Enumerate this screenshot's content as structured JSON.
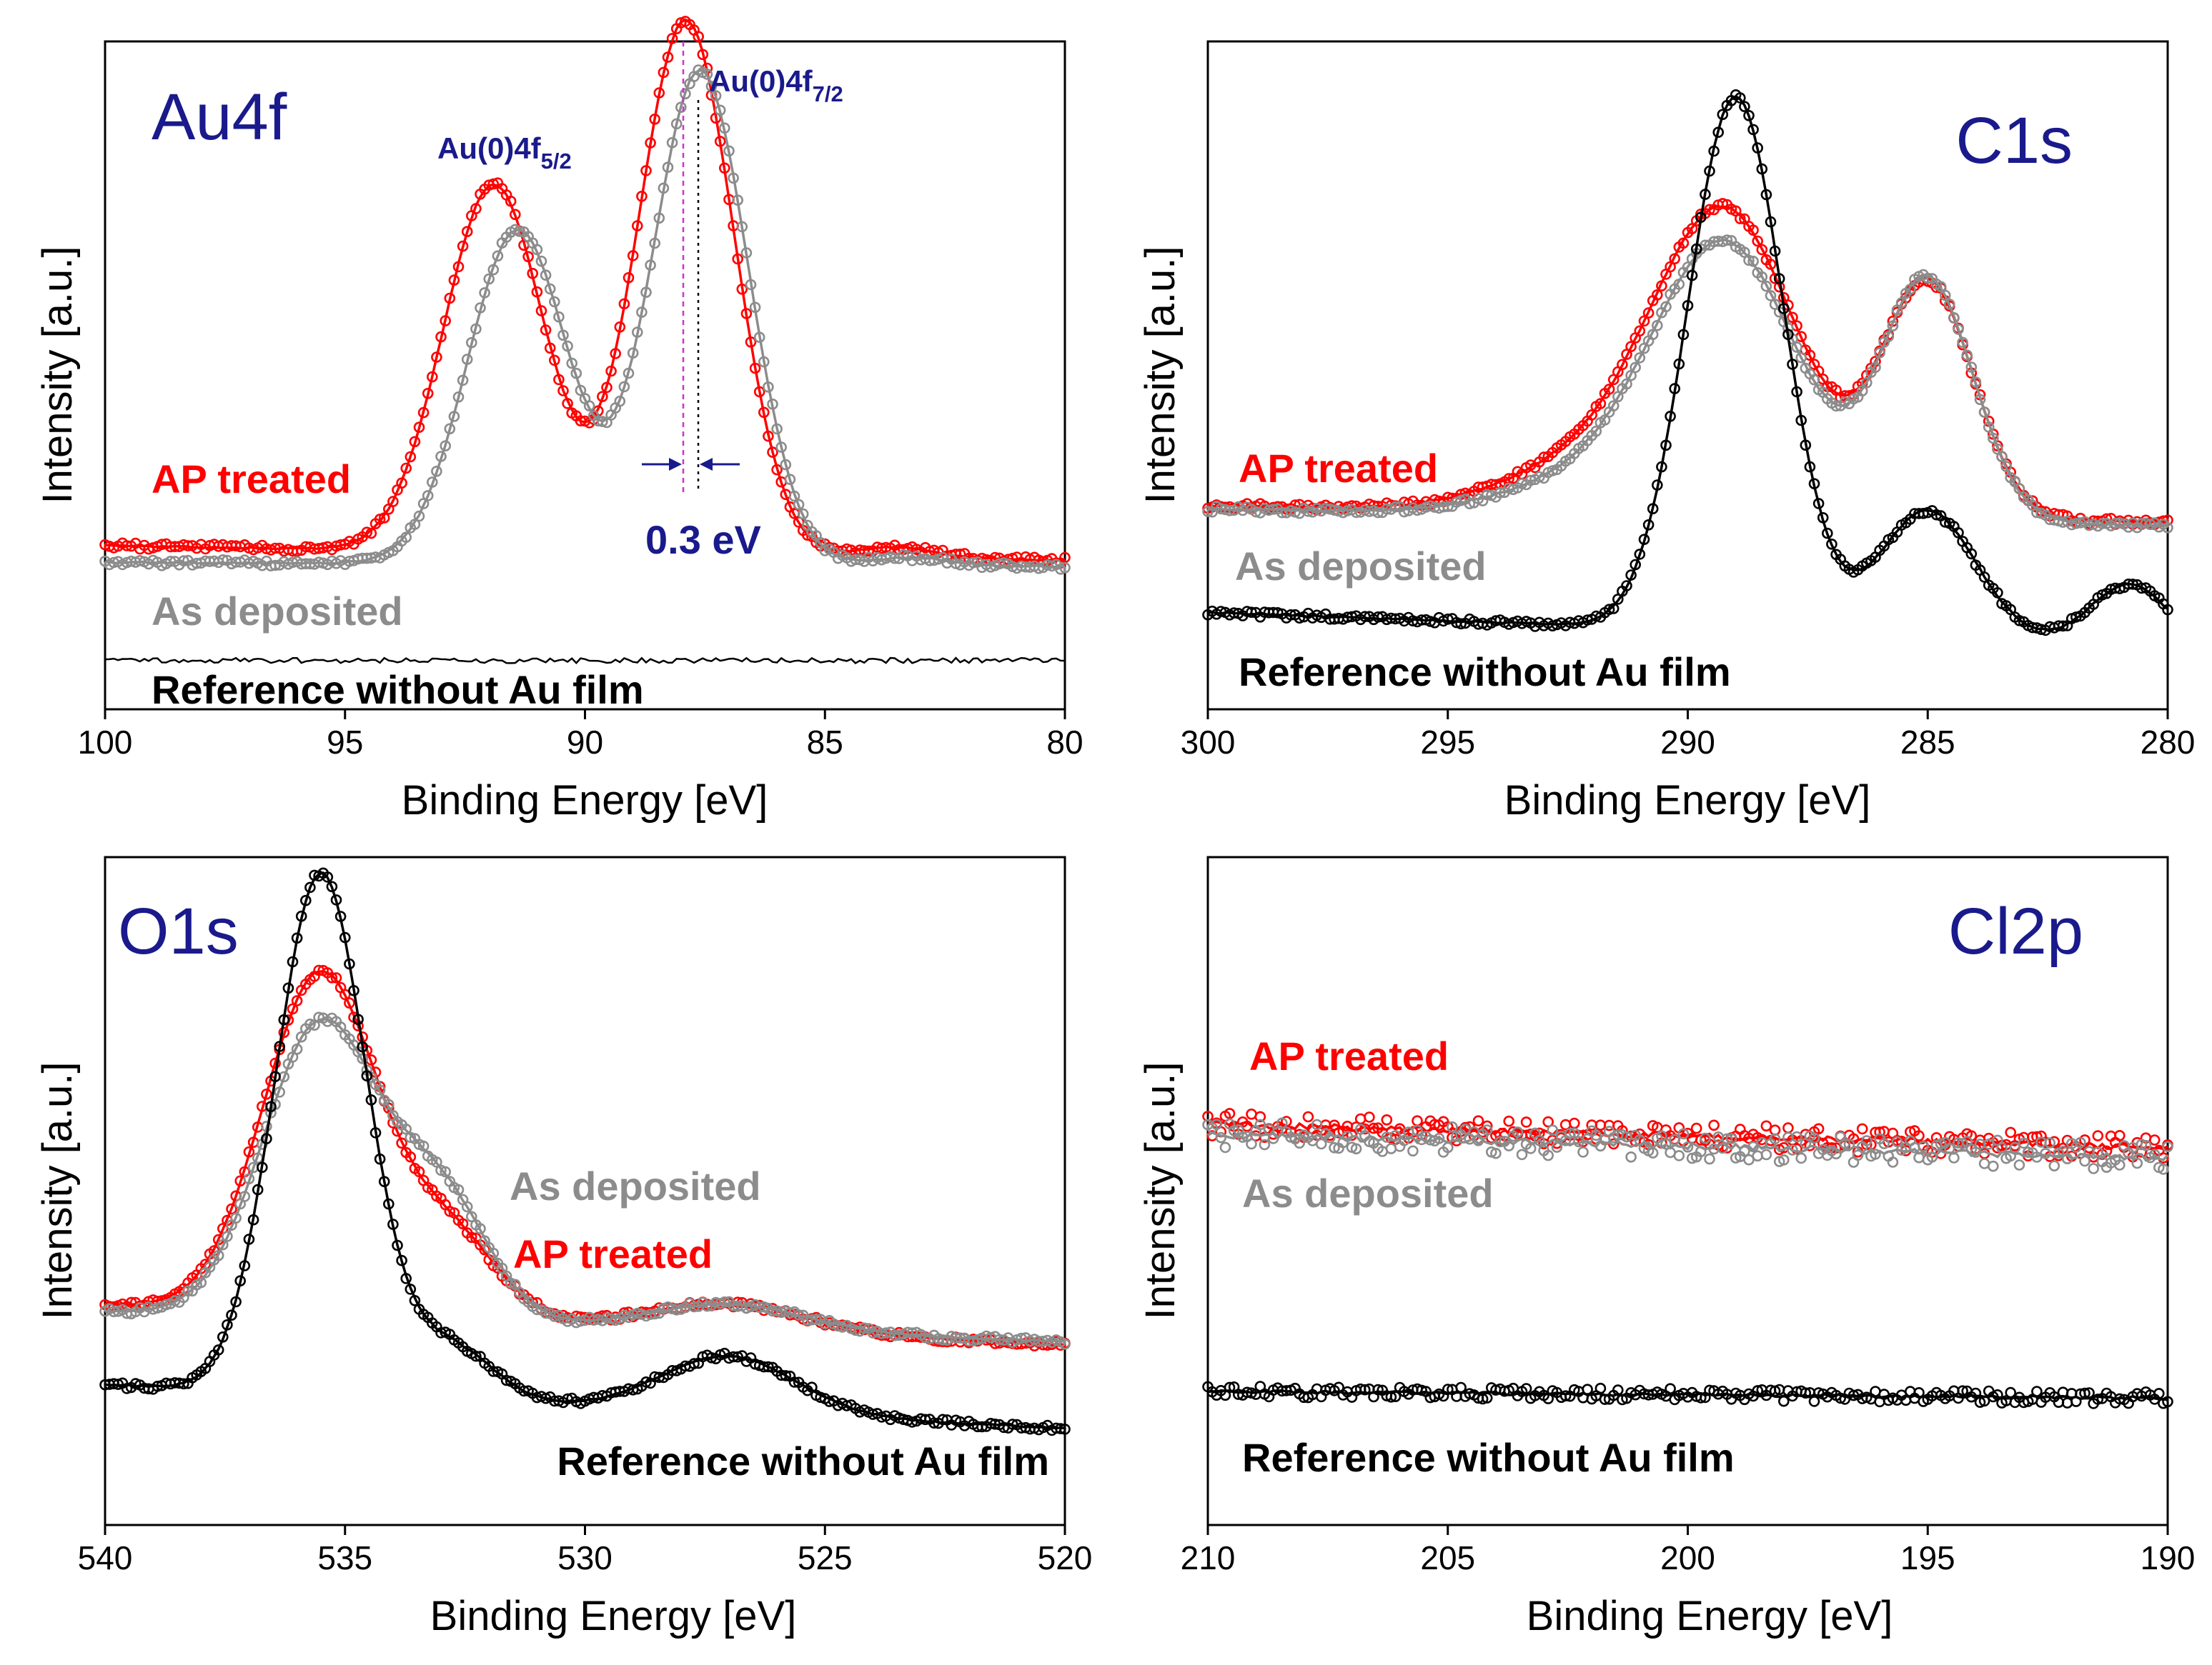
{
  "figure": {
    "axis_labels": {
      "x": "Binding Energy [eV]",
      "y": "Intensity [a.u.]"
    },
    "colors": {
      "ap": "#ff0000",
      "as": "#8c8c8c",
      "ref": "#000000",
      "title": "#1a1a8c",
      "shift_line": "#cc33cc"
    }
  },
  "chart_data": [
    {
      "type": "scatter",
      "title": "Au4f",
      "xlabel": "Binding Energy [eV]",
      "ylabel": "Intensity [a.u.]",
      "xlim": [
        100,
        80
      ],
      "ylim": [
        0,
        100
      ],
      "xticks": [
        100,
        95,
        90,
        85,
        80
      ],
      "legend": {
        "ap": "AP treated",
        "as": "As deposited",
        "ref": "Reference without Au film"
      },
      "annotations": {
        "peak_52_main": "Au(0)4f",
        "peak_52_sub": "5/2",
        "peak_72_main": "Au(0)4f",
        "peak_72_sub": "7/2",
        "shift": "0.3 eV",
        "ap_peak_energy": 87.9,
        "as_peak_energy": 87.6
      },
      "series": [
        {
          "key": "ap",
          "name": "AP treated",
          "baseline": 24.5,
          "slope": -2.2,
          "noise": 0.45,
          "markers": true,
          "peaks": [
            {
              "x": 91.9,
              "a": 55,
              "w": 1.05
            },
            {
              "x": 87.9,
              "a": 80,
              "w": 1.0
            },
            {
              "x": 83.5,
              "a": 1.6,
              "w": 0.8
            }
          ]
        },
        {
          "key": "as",
          "name": "As deposited",
          "baseline": 22.0,
          "slope": -0.6,
          "noise": 0.45,
          "markers": true,
          "peaks": [
            {
              "x": 91.4,
              "a": 50,
              "w": 1.05
            },
            {
              "x": 87.6,
              "a": 74,
              "w": 1.0
            },
            {
              "x": 83.2,
              "a": 1.2,
              "w": 0.8
            }
          ]
        },
        {
          "key": "ref",
          "name": "Reference without Au film",
          "baseline": 7.3,
          "slope": 0,
          "noise": 0.25,
          "markers": false,
          "peaks": []
        }
      ]
    },
    {
      "type": "scatter",
      "title": "C1s",
      "xlabel": "Binding Energy [eV]",
      "ylabel": "Intensity [a.u.]",
      "xlim": [
        300,
        280
      ],
      "ylim": [
        0,
        100
      ],
      "xticks": [
        300,
        295,
        290,
        285,
        280
      ],
      "legend": {
        "ap": "AP treated",
        "as": "As deposited",
        "ref": "Reference without Au film"
      },
      "series": [
        {
          "key": "ap",
          "name": "AP treated",
          "baseline": 30.5,
          "slope": -2.5,
          "noise": 0.45,
          "markers": true,
          "peaks": [
            {
              "x": 289.2,
              "a": 44,
              "w": 1.5
            },
            {
              "x": 292.0,
              "a": 7,
              "w": 1.8
            },
            {
              "x": 285.0,
              "a": 35,
              "w": 0.95
            }
          ]
        },
        {
          "key": "as",
          "name": "As deposited",
          "baseline": 30.0,
          "slope": -2.5,
          "noise": 0.45,
          "markers": true,
          "peaks": [
            {
              "x": 289.2,
              "a": 40,
              "w": 1.5
            },
            {
              "x": 292.0,
              "a": 5,
              "w": 1.8
            },
            {
              "x": 285.0,
              "a": 36,
              "w": 0.95
            }
          ]
        },
        {
          "key": "ref",
          "name": "Reference without Au film",
          "baseline": 14.5,
          "slope": -5.0,
          "noise": 0.45,
          "markers": true,
          "peaks": [
            {
              "x": 289.0,
              "a": 80,
              "w": 1.0
            },
            {
              "x": 285.0,
              "a": 19,
              "w": 1.0
            },
            {
              "x": 280.8,
              "a": 9,
              "w": 0.8
            }
          ]
        }
      ]
    },
    {
      "type": "scatter",
      "title": "O1s",
      "xlabel": "Binding Energy [eV]",
      "ylabel": "Intensity [a.u.]",
      "xlim": [
        540,
        520
      ],
      "ylim": [
        0,
        100
      ],
      "xticks": [
        540,
        535,
        530,
        525,
        520
      ],
      "legend": {
        "ap": "AP treated",
        "as": "As deposited",
        "ref": "Reference without Au film"
      },
      "series": [
        {
          "key": "ap",
          "name": "AP treated",
          "baseline": 33.0,
          "slope": -6.0,
          "noise": 0.45,
          "markers": true,
          "peaks": [
            {
              "x": 535.5,
              "a": 51,
              "w": 1.2
            },
            {
              "x": 532.8,
              "a": 12,
              "w": 1.0
            },
            {
              "x": 527.0,
              "a": 4,
              "w": 1.6
            }
          ]
        },
        {
          "key": "as",
          "name": "As deposited",
          "baseline": 32.0,
          "slope": -4.5,
          "noise": 0.45,
          "markers": true,
          "peaks": [
            {
              "x": 535.5,
              "a": 44,
              "w": 1.2
            },
            {
              "x": 533.0,
              "a": 18,
              "w": 1.0
            },
            {
              "x": 527.0,
              "a": 4,
              "w": 1.6
            }
          ]
        },
        {
          "key": "ref",
          "name": "Reference without Au film",
          "baseline": 21.0,
          "slope": -6.5,
          "noise": 0.45,
          "markers": true,
          "peaks": [
            {
              "x": 535.5,
              "a": 78,
              "w": 0.95
            },
            {
              "x": 532.8,
              "a": 8,
              "w": 0.9
            },
            {
              "x": 527.0,
              "a": 8.5,
              "w": 1.4
            }
          ]
        }
      ]
    },
    {
      "type": "scatter",
      "title": "Cl2p",
      "xlabel": "Binding Energy [eV]",
      "ylabel": "Intensity [a.u.]",
      "xlim": [
        210,
        190
      ],
      "ylim": [
        0,
        100
      ],
      "xticks": [
        210,
        205,
        200,
        195,
        190
      ],
      "legend": {
        "ap": "AP treated",
        "as": "As deposited",
        "ref": "Reference without Au film"
      },
      "series": [
        {
          "key": "ap",
          "name": "AP treated",
          "baseline": 60.0,
          "slope": -3.5,
          "noise": 1.8,
          "markers": true,
          "peaks": []
        },
        {
          "key": "as",
          "name": "As deposited",
          "baseline": 58.5,
          "slope": -3.5,
          "noise": 2.0,
          "markers": true,
          "peaks": []
        },
        {
          "key": "ref",
          "name": "Reference without Au film",
          "baseline": 20.0,
          "slope": -1.0,
          "noise": 0.9,
          "markers": true,
          "peaks": []
        }
      ]
    }
  ]
}
